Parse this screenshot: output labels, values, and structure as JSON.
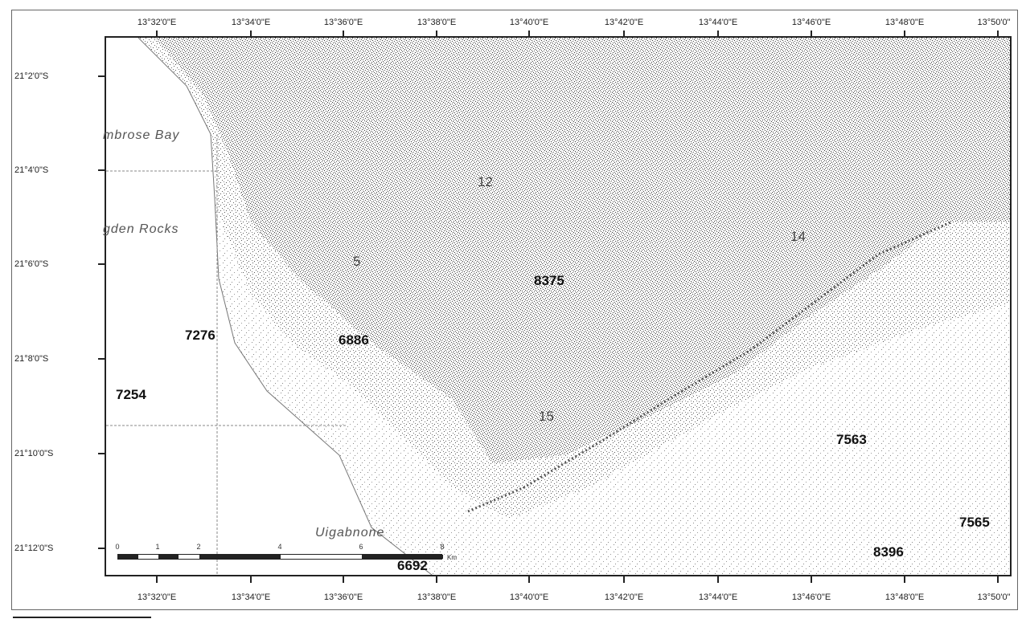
{
  "map": {
    "top_ticks": [
      "13°32'0\"E",
      "13°34'0\"E",
      "13°36'0\"E",
      "13°38'0\"E",
      "13°40'0\"E",
      "13°42'0\"E",
      "13°44'0\"E",
      "13°46'0\"E",
      "13°48'0\"E",
      "13°50'0\""
    ],
    "bottom_ticks": [
      "13°32'0\"E",
      "13°34'0\"E",
      "13°36'0\"E",
      "13°38'0\"E",
      "13°40'0\"E",
      "13°42'0\"E",
      "13°44'0\"E",
      "13°46'0\"E",
      "13°48'0\"E",
      "13°50'0\""
    ],
    "left_ticks": [
      "21°2'0\"S",
      "21°4'0\"S",
      "21°6'0\"S",
      "21°8'0\"S",
      "21°10'0\"S",
      "21°12'0\"S"
    ],
    "place_labels": {
      "ambrose_bay": "mbrose Bay",
      "ogden_rocks": "gden Rocks",
      "uigabnone": "Uigabnone"
    },
    "grid_labels": [
      "12",
      "14",
      "5",
      "15"
    ],
    "values": [
      "8375",
      "7276",
      "6886",
      "7254",
      "7563",
      "7565",
      "8396",
      "6692"
    ],
    "scale": {
      "labels": [
        "0",
        "1",
        "2",
        "4",
        "6",
        "8"
      ],
      "unit": "Km"
    },
    "colors": {
      "dense_terrain": "#333333",
      "ocean": "#ffffff",
      "frame": "#222222"
    }
  }
}
